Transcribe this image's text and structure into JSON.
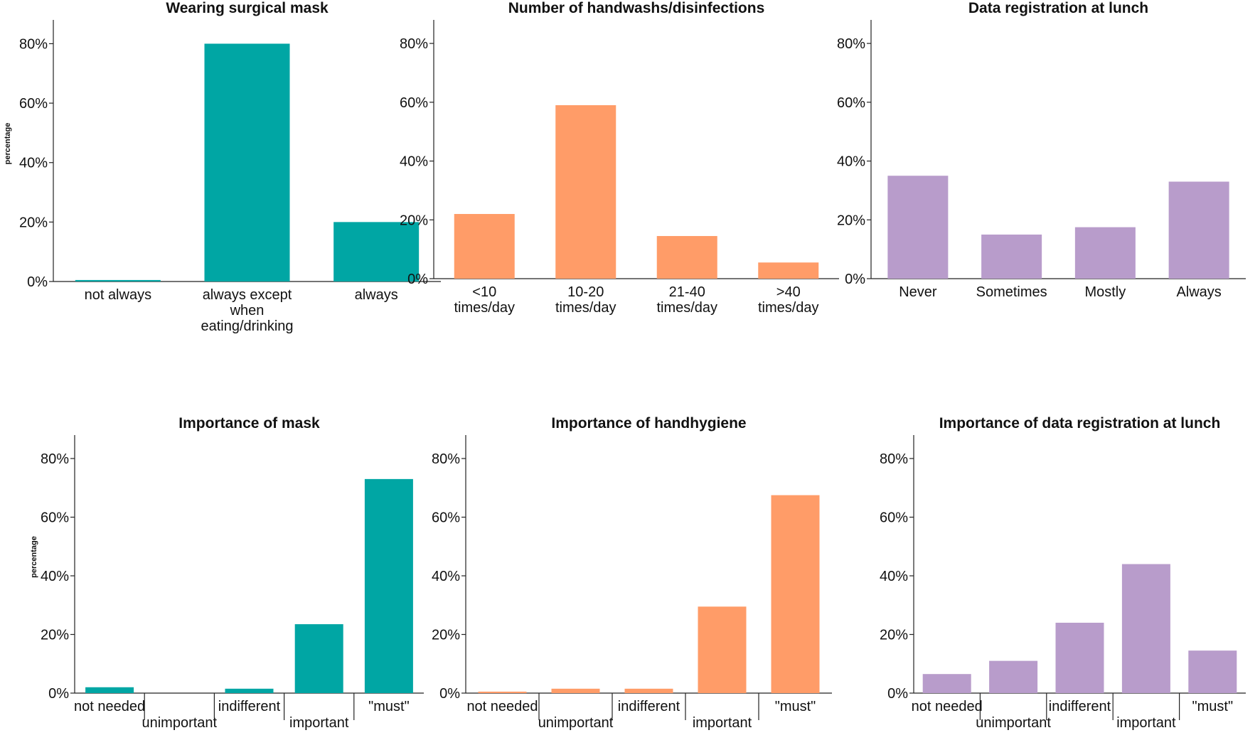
{
  "colors": {
    "teal": "#00a6a4",
    "orange": "#ff9c68",
    "purple": "#b89ccb"
  },
  "chart_data": [
    {
      "type": "bar",
      "title": "Wearing surgical mask",
      "ylabel": "percentage",
      "ylim": [
        0,
        88
      ],
      "yticks": [
        "0%",
        "20%",
        "40%",
        "60%",
        "80%"
      ],
      "categories": [
        [
          "not always"
        ],
        [
          "always except",
          "when",
          "eating/drinking"
        ],
        [
          "always"
        ]
      ],
      "values": [
        0.5,
        80,
        20
      ],
      "color": "teal"
    },
    {
      "type": "bar",
      "title": "Number of handwashs/disinfections",
      "ylim": [
        0,
        88
      ],
      "yticks": [
        "0%",
        "20%",
        "40%",
        "60%",
        "80%"
      ],
      "categories": [
        [
          "<10",
          "times/day"
        ],
        [
          "10-20",
          "times/day"
        ],
        [
          "21-40",
          "times/day"
        ],
        [
          ">40",
          "times/day"
        ]
      ],
      "values": [
        22,
        59,
        14.5,
        5.5
      ],
      "color": "orange"
    },
    {
      "type": "bar",
      "title": "Data registration at lunch",
      "ylim": [
        0,
        88
      ],
      "yticks": [
        "0%",
        "20%",
        "40%",
        "60%",
        "80%"
      ],
      "categories": [
        [
          "Never"
        ],
        [
          "Sometimes"
        ],
        [
          "Mostly"
        ],
        [
          "Always"
        ]
      ],
      "values": [
        35,
        15,
        17.5,
        33
      ],
      "color": "purple"
    },
    {
      "type": "bar",
      "title": "Importance of mask",
      "ylabel": "percentage",
      "ylim": [
        0,
        88
      ],
      "yticks": [
        "0%",
        "20%",
        "40%",
        "60%",
        "80%"
      ],
      "categories": [
        [
          "not needed"
        ],
        [
          "unimportant"
        ],
        [
          "indifferent"
        ],
        [
          "important"
        ],
        [
          "\"must\""
        ]
      ],
      "values": [
        2,
        0,
        1.5,
        23.5,
        73
      ],
      "color": "teal"
    },
    {
      "type": "bar",
      "title": "Importance of handhygiene",
      "ylim": [
        0,
        88
      ],
      "yticks": [
        "0%",
        "20%",
        "40%",
        "60%",
        "80%"
      ],
      "categories": [
        [
          "not needed"
        ],
        [
          "unimportant"
        ],
        [
          "indifferent"
        ],
        [
          "important"
        ],
        [
          "\"must\""
        ]
      ],
      "values": [
        0.5,
        1.5,
        1.5,
        29.5,
        67.5
      ],
      "color": "orange"
    },
    {
      "type": "bar",
      "title": "Importance of data registration at lunch",
      "ylim": [
        0,
        88
      ],
      "yticks": [
        "0%",
        "20%",
        "40%",
        "60%",
        "80%"
      ],
      "categories": [
        [
          "not needed"
        ],
        [
          "unimportant"
        ],
        [
          "indifferent"
        ],
        [
          "important"
        ],
        [
          "\"must\""
        ]
      ],
      "values": [
        6.5,
        11,
        24,
        44,
        14.5
      ],
      "color": "purple"
    }
  ]
}
